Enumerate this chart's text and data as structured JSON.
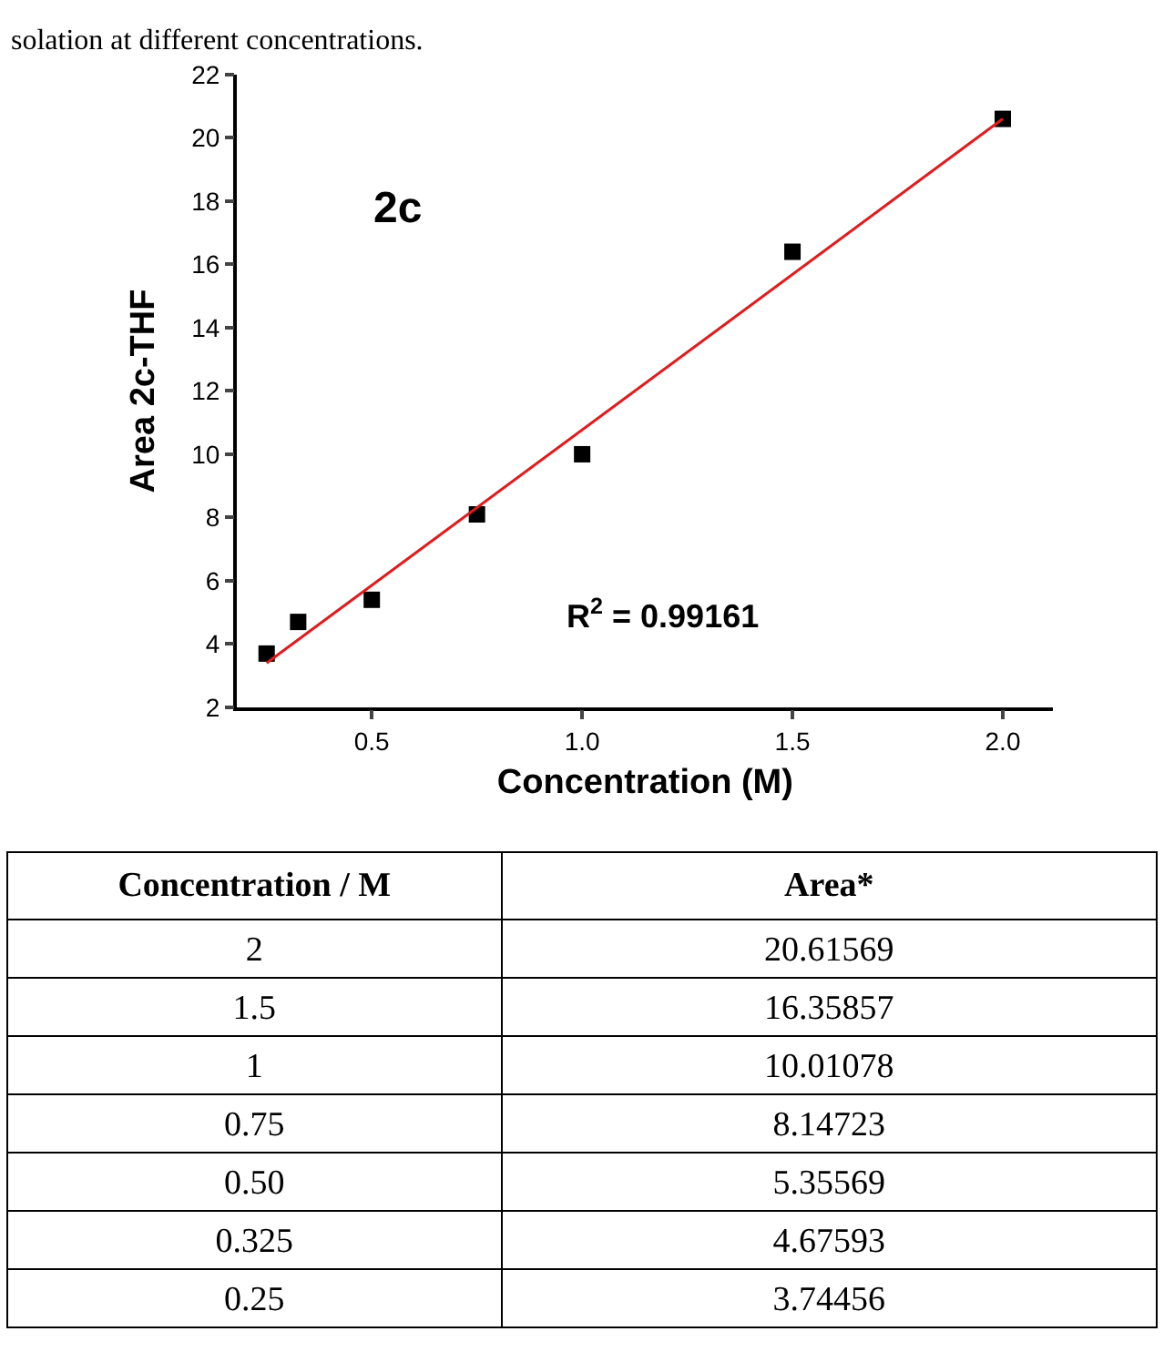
{
  "chart_data": [
    {
      "type": "scatter",
      "title": "solation at different concentrations.",
      "xlabel": "Concentration (M)",
      "ylabel": "Area 2c-THF",
      "x": [
        2,
        1.5,
        1,
        0.75,
        0.5,
        0.325,
        0.25
      ],
      "series": [
        {
          "type": "scatter",
          "color": "#000000",
          "marker": "square",
          "values": [
            20.6,
            16.4,
            10.0,
            8.1,
            5.4,
            4.7,
            3.7
          ]
        },
        {
          "type": "line",
          "color": "#e31a1c",
          "marker": "none",
          "line_style": "solid",
          "x": [
            0.25,
            2.0
          ],
          "values": [
            3.4,
            20.6
          ]
        }
      ],
      "annotations": [
        "2c",
        "R$^{2}$ = 0.99161"
      ],
      "xlim": [
        0.18,
        2.12
      ],
      "xticks": [
        {
          "value": 0.5,
          "label": "0.5"
        },
        {
          "value": 1.0,
          "label": "1.0"
        },
        {
          "value": 1.5,
          "label": "1.5"
        },
        {
          "value": 2.0,
          "label": "2.0"
        }
      ],
      "ylim": [
        2,
        22
      ],
      "yticks": [
        2,
        4,
        6,
        8,
        10,
        12,
        14,
        16,
        18,
        20,
        22
      ]
    },
    {
      "type": "other",
      "annotations": [
        "Concentration / M",
        "Area*",
        "2",
        "20.61569",
        "1.5",
        "16.35857",
        "1",
        "10.01078",
        "0.75",
        "8.14723",
        "0.50",
        "5.35569",
        "0.325",
        "4.67593",
        "0.25",
        "3.74456"
      ]
    }
  ]
}
